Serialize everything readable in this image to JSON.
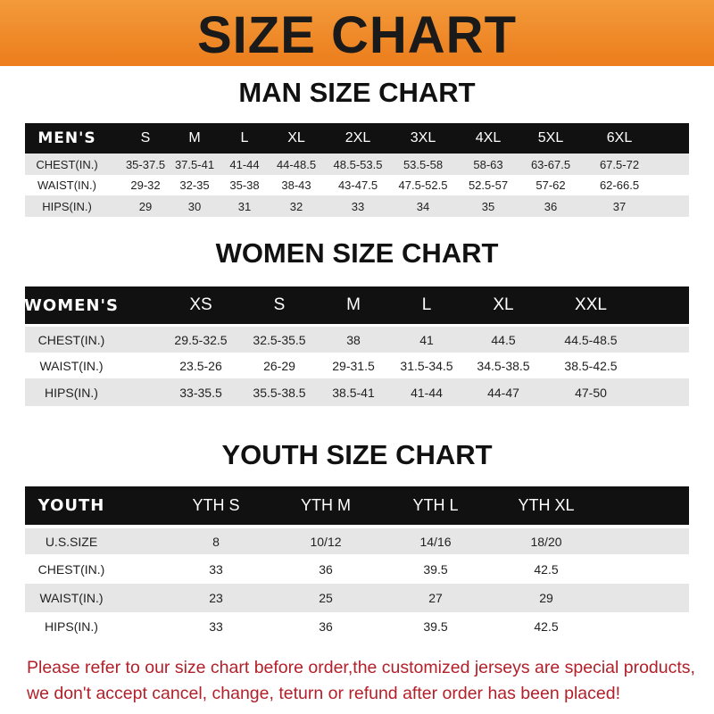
{
  "banner": {
    "title": "SIZE CHART",
    "color": "#ef8a26"
  },
  "men": {
    "title": "MAN SIZE CHART",
    "header": [
      "MEN'S",
      "S",
      "M",
      "L",
      "XL",
      "2XL",
      "3XL",
      "4XL",
      "5XL",
      "6XL"
    ],
    "rows": [
      [
        "CHEST(IN.)",
        "35-37.5",
        "37.5-41",
        "41-44",
        "44-48.5",
        "48.5-53.5",
        "53.5-58",
        "58-63",
        "63-67.5",
        "67.5-72"
      ],
      [
        "WAIST(IN.)",
        "29-32",
        "32-35",
        "35-38",
        "38-43",
        "43-47.5",
        "47.5-52.5",
        "52.5-57",
        "57-62",
        "62-66.5"
      ],
      [
        "HIPS(IN.)",
        "29",
        "30",
        "31",
        "32",
        "33",
        "34",
        "35",
        "36",
        "37"
      ]
    ]
  },
  "women": {
    "title": "WOMEN SIZE CHART",
    "header": [
      "WOMEN'S",
      "XS",
      "S",
      "M",
      "L",
      "XL",
      "XXL"
    ],
    "rows": [
      [
        "CHEST(IN.)",
        "29.5-32.5",
        "32.5-35.5",
        "38",
        "41",
        "44.5",
        "44.5-48.5"
      ],
      [
        "WAIST(IN.)",
        "23.5-26",
        "26-29",
        "29-31.5",
        "31.5-34.5",
        "34.5-38.5",
        "38.5-42.5"
      ],
      [
        "HIPS(IN.)",
        "33-35.5",
        "35.5-38.5",
        "38.5-41",
        "41-44",
        "44-47",
        "47-50"
      ]
    ]
  },
  "youth": {
    "title": "YOUTH SIZE CHART",
    "header": [
      "YOUTH",
      "YTH S",
      "YTH M",
      "YTH L",
      "YTH XL"
    ],
    "rows": [
      [
        "U.S.SIZE",
        "8",
        "10/12",
        "14/16",
        "18/20"
      ],
      [
        "CHEST(IN.)",
        "33",
        "36",
        "39.5",
        "42.5"
      ],
      [
        "WAIST(IN.)",
        "23",
        "25",
        "27",
        "29"
      ],
      [
        "HIPS(IN.)",
        "33",
        "36",
        "39.5",
        "42.5"
      ]
    ]
  },
  "note": {
    "line1": "Please refer to our size chart before order,the customized jerseys are special products,",
    "line2": "we don't accept cancel, change, teturn or refund after order has been placed!",
    "color": "#b3202a"
  }
}
